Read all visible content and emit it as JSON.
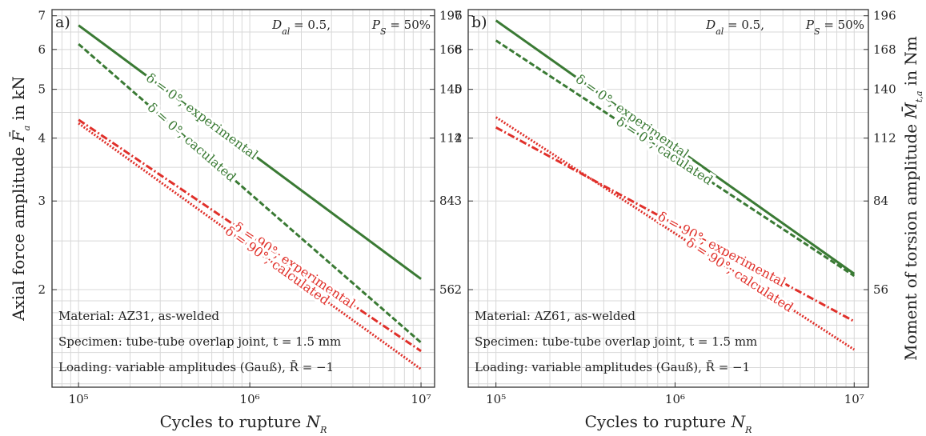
{
  "colors": {
    "green": "#3a7a34",
    "red": "#e0302a",
    "grid": "#d8d8d8",
    "frame": "#333333"
  },
  "chart_data": [
    {
      "type": "line",
      "panel_label": "a)",
      "params": {
        "d_al": "D_al = 0.5,",
        "p_s": "P_S = 50%"
      },
      "xlabel": "Cycles to rupture N_R",
      "ylabel_left": "Axial force amplitude F̄_a in kN",
      "ylabel_right": "",
      "xscale": "log",
      "yscale": "log",
      "xlim": [
        70000,
        12000000
      ],
      "ylim": [
        1.28,
        7.2
      ],
      "x_ticks": [
        {
          "v": 100000,
          "label": "10⁵"
        },
        {
          "v": 1000000,
          "label": "10⁶"
        },
        {
          "v": 10000000,
          "label": "10⁷"
        }
      ],
      "y_ticks_left": [
        2,
        3,
        4,
        5,
        6,
        7
      ],
      "y_ticks_right": [
        {
          "v": 2,
          "label": "56"
        },
        {
          "v": 3,
          "label": "84"
        },
        {
          "v": 4,
          "label": "112"
        },
        {
          "v": 5,
          "label": "140"
        },
        {
          "v": 6,
          "label": "168"
        },
        {
          "v": 7,
          "label": "196"
        }
      ],
      "grid": true,
      "series": [
        {
          "name": "δ = 0°, experimental",
          "color": "green",
          "dash": "solid",
          "x": [
            100000,
            10000000
          ],
          "y": [
            6.7,
            2.1
          ]
        },
        {
          "name": "δ = 0°, caculated",
          "color": "green",
          "dash": "dashed",
          "x": [
            100000,
            10000000
          ],
          "y": [
            6.15,
            1.57
          ]
        },
        {
          "name": "δ = 90°, experimental",
          "color": "red",
          "dash": "dashdot",
          "x": [
            100000,
            10000000
          ],
          "y": [
            4.35,
            1.51
          ]
        },
        {
          "name": "δ = 90°, calculated",
          "color": "red",
          "dash": "dotted",
          "x": [
            100000,
            10000000
          ],
          "y": [
            4.28,
            1.39
          ]
        }
      ],
      "notes": [
        "Material:  AZ31, as-welded",
        "Specimen:  tube-tube overlap joint, t = 1.5 mm",
        "Loading:  variable amplitudes (Gauß), R̄ = −1"
      ]
    },
    {
      "type": "line",
      "panel_label": "b)",
      "params": {
        "d_al": "D_al = 0.5,",
        "p_s": "P_S = 50%"
      },
      "xlabel": "Cycles to rupture N_R",
      "ylabel_left": "",
      "ylabel_right": "Moment of torsion amplitude M̄_t,a in Nm",
      "xscale": "log",
      "yscale": "log",
      "xlim": [
        70000,
        12000000
      ],
      "ylim": [
        1.28,
        7.2
      ],
      "x_ticks": [
        {
          "v": 100000,
          "label": "10⁵"
        },
        {
          "v": 1000000,
          "label": "10⁶"
        },
        {
          "v": 10000000,
          "label": "10⁷"
        }
      ],
      "y_ticks_left": [
        2,
        3,
        4,
        5,
        6,
        7
      ],
      "y_ticks_right": [
        {
          "v": 2,
          "label": "56"
        },
        {
          "v": 3,
          "label": "84"
        },
        {
          "v": 4,
          "label": "112"
        },
        {
          "v": 5,
          "label": "140"
        },
        {
          "v": 6,
          "label": "168"
        },
        {
          "v": 7,
          "label": "196"
        }
      ],
      "grid": true,
      "series": [
        {
          "name": "δ = 0°, experimental",
          "color": "green",
          "dash": "solid",
          "x": [
            100000,
            10000000
          ],
          "y": [
            6.85,
            2.15
          ]
        },
        {
          "name": "δ = 0°, caculated",
          "color": "green",
          "dash": "dashed",
          "x": [
            100000,
            10000000
          ],
          "y": [
            6.25,
            2.13
          ]
        },
        {
          "name": "δ = 90°, experimental",
          "color": "red",
          "dash": "dashdot",
          "x": [
            100000,
            10000000
          ],
          "y": [
            4.2,
            1.73
          ]
        },
        {
          "name": "δ = 90°, calculated",
          "color": "red",
          "dash": "dotted",
          "x": [
            100000,
            10000000
          ],
          "y": [
            4.4,
            1.52
          ]
        }
      ],
      "notes": [
        "Material:  AZ61, as-welded",
        "Specimen:  tube-tube overlap joint, t = 1.5 mm",
        "Loading:  variable amplitudes (Gauß), R̄ = −1"
      ]
    }
  ]
}
